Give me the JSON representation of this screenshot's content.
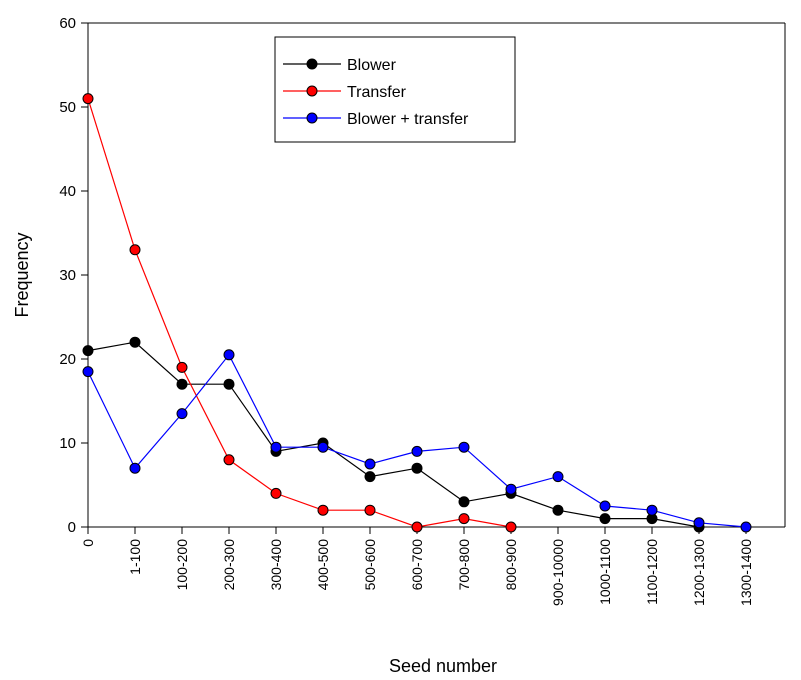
{
  "chart_data": {
    "type": "line",
    "xlabel": "Seed number",
    "ylabel": "Frequency",
    "ylim": [
      0,
      60
    ],
    "yticks": [
      0,
      10,
      20,
      30,
      40,
      50,
      60
    ],
    "categories": [
      "0",
      "1-100",
      "100-200",
      "200-300",
      "300-400",
      "400-500",
      "500-600",
      "600-700",
      "700-800",
      "800-900",
      "900-10000",
      "1000-1100",
      "1100-1200",
      "1200-1300",
      "1300-1400"
    ],
    "legend_position": "top-center",
    "series": [
      {
        "name": "Blower",
        "color": "#000000",
        "values": [
          21,
          22,
          17,
          17,
          9,
          10,
          6,
          7,
          3,
          4,
          2,
          1,
          1,
          0,
          null
        ]
      },
      {
        "name": "Transfer",
        "color": "#ff0000",
        "values": [
          51,
          33,
          19,
          8,
          4,
          2,
          2,
          0,
          1,
          0,
          null,
          null,
          null,
          null,
          null
        ]
      },
      {
        "name": "Blower + transfer",
        "color": "#0000ff",
        "values": [
          18.5,
          7,
          13.5,
          20.5,
          9.5,
          9.5,
          7.5,
          9,
          9.5,
          4.5,
          6,
          2.5,
          2,
          0.5,
          0
        ]
      }
    ]
  }
}
